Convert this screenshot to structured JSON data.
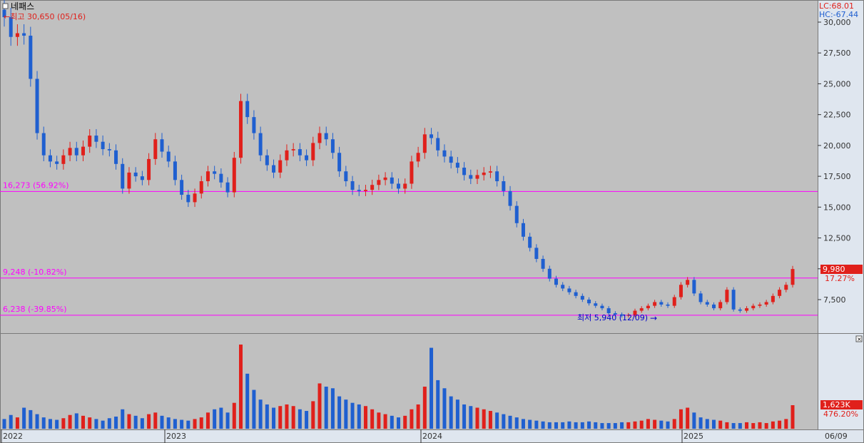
{
  "stock_name": "네패스",
  "high_marker": "←최고 30,650 (05/16)",
  "low_marker": "최저 5,940 (12/09)",
  "hc_label": "HC:-67.44",
  "lc_label": "LC:68.01",
  "price_axis_ticks": [
    "30,000",
    "27,500",
    "25,000",
    "22,500",
    "20,000",
    "17,500",
    "15,000",
    "12,500",
    "10,000",
    "7,500"
  ],
  "last_price_badge": "9,980",
  "last_change_pct": "17.27%",
  "volume_badge": "1,623K",
  "volume_change_pct": "476.20%",
  "x_labels": [
    "2022",
    "2023",
    "2024",
    "2025",
    "06/09"
  ],
  "colors": {
    "up": "#e0201b",
    "down": "#1f5fd0",
    "hline": "#ff00ff",
    "panel_bg": "#c0c0c0",
    "axis_bg": "#dfe6ef"
  },
  "chart_data": [
    {
      "type": "candlestick",
      "title": "네패스",
      "ylim": [
        5500,
        31000
      ],
      "x_period": "weekly, 2022 to 06/09/2025",
      "reference_lines": [
        {
          "label": "16,273 (56.92%)",
          "value": 16273
        },
        {
          "label": "9,248 (-10.82%)",
          "value": 9248
        },
        {
          "label": "6,238 (-39.85%)",
          "value": 6238
        }
      ],
      "close_path": [
        30400,
        28800,
        29100,
        28900,
        25400,
        21000,
        19200,
        18700,
        18500,
        19200,
        19800,
        19200,
        19900,
        20800,
        20300,
        19700,
        19600,
        18500,
        16500,
        17800,
        17500,
        17200,
        18900,
        20500,
        19500,
        18700,
        17200,
        16000,
        15400,
        16100,
        17100,
        17900,
        17700,
        17000,
        16200,
        19000,
        23600,
        22300,
        21000,
        19200,
        18400,
        17800,
        18800,
        19600,
        19700,
        19200,
        18800,
        20200,
        21000,
        20500,
        19400,
        17900,
        17100,
        16400,
        16300,
        16400,
        16800,
        17200,
        17400,
        16900,
        16500,
        16900,
        18700,
        19400,
        20900,
        20600,
        19600,
        19100,
        18600,
        18200,
        17600,
        17300,
        17600,
        17800,
        17900,
        17100,
        16300,
        15100,
        13700,
        12600,
        11700,
        10800,
        10000,
        9200,
        8700,
        8400,
        8100,
        7800,
        7500,
        7200,
        7000,
        6800,
        6400,
        6300,
        6200,
        6250,
        6600,
        6800,
        7000,
        7300,
        7100,
        7000,
        7700,
        8700,
        9100,
        8000,
        7300,
        7100,
        6800,
        7300,
        8300,
        6700,
        6600,
        6800,
        7000,
        7100,
        7300,
        7800,
        8300,
        8700,
        9980
      ],
      "volume_path_K": [
        60,
        85,
        70,
        130,
        115,
        90,
        70,
        60,
        55,
        65,
        85,
        95,
        80,
        70,
        60,
        50,
        65,
        75,
        120,
        90,
        80,
        65,
        90,
        100,
        80,
        70,
        60,
        55,
        50,
        60,
        70,
        100,
        120,
        130,
        100,
        160,
        520,
        340,
        240,
        180,
        150,
        130,
        140,
        150,
        140,
        120,
        110,
        170,
        280,
        260,
        250,
        200,
        180,
        160,
        150,
        140,
        120,
        100,
        90,
        80,
        70,
        80,
        120,
        150,
        260,
        500,
        300,
        250,
        200,
        180,
        150,
        140,
        130,
        120,
        110,
        100,
        90,
        80,
        70,
        60,
        55,
        50,
        45,
        40,
        40,
        40,
        45,
        40,
        40,
        45,
        40,
        35,
        35,
        35,
        40,
        40,
        45,
        50,
        60,
        55,
        50,
        45,
        60,
        120,
        130,
        100,
        70,
        60,
        55,
        50,
        40,
        35,
        35,
        40,
        35,
        40,
        35,
        45,
        50,
        60,
        1623
      ]
    }
  ]
}
